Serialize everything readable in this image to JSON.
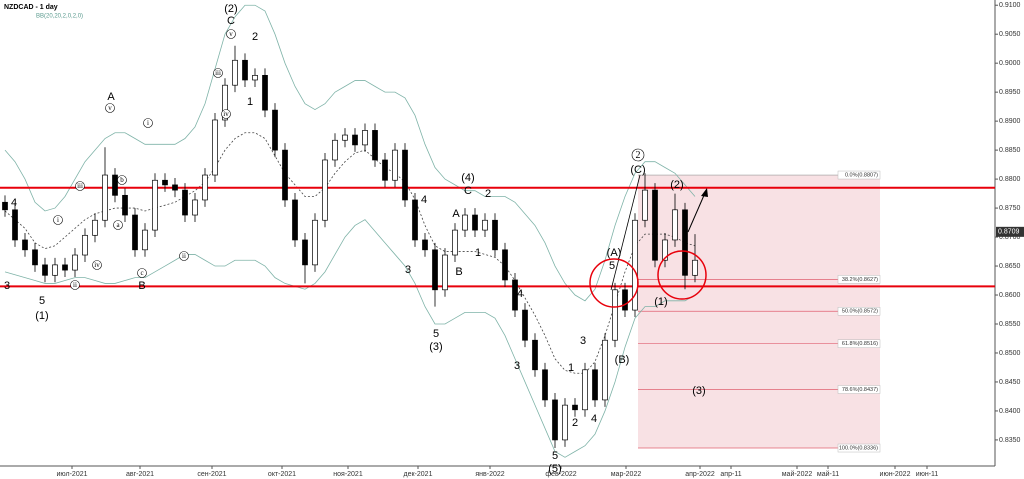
{
  "chart_data": {
    "type": "candlestick",
    "title": "NZDCAD - 1 day",
    "indicator": "BB(20,20,2,0,2,0)",
    "open": [
      0.876,
      0.8747,
      0.8695,
      0.8678,
      0.8652,
      0.8634,
      0.8652,
      0.8643,
      0.8669,
      0.8703,
      0.8729,
      0.8807,
      0.8772,
      0.8738,
      0.8678,
      0.8712,
      0.8798,
      0.879,
      0.8781,
      0.8738,
      0.8764,
      0.8807,
      0.8902,
      0.8962,
      0.9005,
      0.8971,
      0.8979,
      0.8919,
      0.885,
      0.8764,
      0.8695,
      0.8652,
      0.8729,
      0.8833,
      0.8867,
      0.8876,
      0.8859,
      0.8884,
      0.8833,
      0.8798,
      0.885,
      0.8764,
      0.8695,
      0.8678,
      0.8609,
      0.8669,
      0.8712,
      0.8738,
      0.8712,
      0.8729,
      0.8678,
      0.8626,
      0.8574,
      0.8522,
      0.8471,
      0.8419,
      0.835,
      0.841,
      0.8402,
      0.8471,
      0.8419,
      0.8522,
      0.8609,
      0.8574,
      0.8729,
      0.8781,
      0.866,
      0.8695,
      0.8747,
      0.8634
    ],
    "high": [
      0.8772,
      0.8759,
      0.8707,
      0.869,
      0.8664,
      0.8664,
      0.8664,
      0.8681,
      0.8715,
      0.8741,
      0.8855,
      0.8819,
      0.8784,
      0.875,
      0.8724,
      0.881,
      0.881,
      0.8802,
      0.8793,
      0.8776,
      0.8819,
      0.8914,
      0.8974,
      0.903,
      0.9017,
      0.8991,
      0.8991,
      0.8931,
      0.8862,
      0.8776,
      0.8707,
      0.8741,
      0.8845,
      0.8879,
      0.8888,
      0.8888,
      0.8896,
      0.8896,
      0.8845,
      0.8862,
      0.8862,
      0.8776,
      0.8707,
      0.869,
      0.8681,
      0.8724,
      0.875,
      0.875,
      0.8741,
      0.8741,
      0.869,
      0.8638,
      0.8586,
      0.8534,
      0.8483,
      0.8431,
      0.8422,
      0.8422,
      0.8483,
      0.8483,
      0.8534,
      0.8621,
      0.8621,
      0.8741,
      0.881,
      0.8793,
      0.8707,
      0.8775,
      0.8759,
      0.8705
    ],
    "low": [
      0.8735,
      0.8683,
      0.8666,
      0.864,
      0.8622,
      0.8622,
      0.8631,
      0.8631,
      0.8657,
      0.8691,
      0.8717,
      0.876,
      0.8726,
      0.8666,
      0.8666,
      0.87,
      0.8778,
      0.8769,
      0.8726,
      0.8726,
      0.8752,
      0.8795,
      0.889,
      0.895,
      0.8959,
      0.8959,
      0.8907,
      0.8838,
      0.8752,
      0.8683,
      0.862,
      0.864,
      0.8717,
      0.8821,
      0.8855,
      0.8847,
      0.8847,
      0.8821,
      0.8786,
      0.8786,
      0.8752,
      0.8683,
      0.8666,
      0.858,
      0.8597,
      0.8657,
      0.87,
      0.87,
      0.87,
      0.8666,
      0.8614,
      0.8562,
      0.851,
      0.8459,
      0.8407,
      0.8336,
      0.8338,
      0.839,
      0.839,
      0.8407,
      0.8407,
      0.851,
      0.8562,
      0.8562,
      0.8717,
      0.8648,
      0.8648,
      0.8683,
      0.861,
      0.8622
    ],
    "close": [
      0.8747,
      0.8695,
      0.8678,
      0.8652,
      0.8634,
      0.8652,
      0.8643,
      0.8669,
      0.8703,
      0.8729,
      0.8807,
      0.8772,
      0.8738,
      0.8678,
      0.8712,
      0.8798,
      0.879,
      0.8781,
      0.8738,
      0.8764,
      0.8807,
      0.8902,
      0.8962,
      0.9005,
      0.8971,
      0.8979,
      0.8919,
      0.885,
      0.8764,
      0.8695,
      0.8652,
      0.8729,
      0.8833,
      0.8867,
      0.8876,
      0.8859,
      0.8884,
      0.8833,
      0.8798,
      0.885,
      0.8764,
      0.8695,
      0.8678,
      0.8609,
      0.8669,
      0.8712,
      0.8738,
      0.8712,
      0.8729,
      0.8678,
      0.8626,
      0.8574,
      0.8522,
      0.8471,
      0.8419,
      0.835,
      0.841,
      0.8402,
      0.8471,
      0.8419,
      0.8522,
      0.8609,
      0.8574,
      0.8729,
      0.8781,
      0.866,
      0.8695,
      0.8747,
      0.8634,
      0.866
    ],
    "bollinger": {
      "color": "#7fb3a8",
      "upper": [
        0.885,
        0.883,
        0.88,
        0.876,
        0.8745,
        0.875,
        0.877,
        0.88,
        0.883,
        0.885,
        0.887,
        0.888,
        0.888,
        0.887,
        0.886,
        0.886,
        0.886,
        0.886,
        0.887,
        0.889,
        0.893,
        0.899,
        0.905,
        0.908,
        0.91,
        0.91,
        0.909,
        0.905,
        0.9,
        0.896,
        0.893,
        0.892,
        0.893,
        0.895,
        0.896,
        0.897,
        0.897,
        0.896,
        0.895,
        0.895,
        0.894,
        0.891,
        0.886,
        0.882,
        0.88,
        0.879,
        0.878,
        0.878,
        0.877,
        0.877,
        0.877,
        0.876,
        0.874,
        0.872,
        0.869,
        0.865,
        0.862,
        0.86,
        0.859,
        0.861,
        0.866,
        0.872,
        0.877,
        0.881,
        0.883,
        0.883,
        0.882,
        0.881,
        0.879,
        0.877
      ],
      "middle": [
        0.8745,
        0.873,
        0.8715,
        0.869,
        0.868,
        0.8685,
        0.87,
        0.8715,
        0.873,
        0.874,
        0.8745,
        0.875,
        0.875,
        0.875,
        0.8745,
        0.875,
        0.8755,
        0.876,
        0.877,
        0.878,
        0.8795,
        0.882,
        0.885,
        0.887,
        0.888,
        0.888,
        0.887,
        0.884,
        0.881,
        0.879,
        0.877,
        0.877,
        0.8785,
        0.881,
        0.883,
        0.8845,
        0.885,
        0.8835,
        0.882,
        0.881,
        0.8795,
        0.8765,
        0.872,
        0.8685,
        0.8675,
        0.8675,
        0.8675,
        0.8675,
        0.867,
        0.8665,
        0.865,
        0.8625,
        0.8595,
        0.8565,
        0.853,
        0.849,
        0.847,
        0.8465,
        0.8465,
        0.8485,
        0.853,
        0.8585,
        0.864,
        0.8685,
        0.8705,
        0.8705,
        0.8705,
        0.87,
        0.869,
        0.8685
      ],
      "lower": [
        0.864,
        0.8635,
        0.863,
        0.8625,
        0.862,
        0.862,
        0.8625,
        0.863,
        0.863,
        0.8625,
        0.862,
        0.862,
        0.8625,
        0.863,
        0.863,
        0.864,
        0.865,
        0.866,
        0.867,
        0.867,
        0.866,
        0.865,
        0.865,
        0.866,
        0.866,
        0.866,
        0.865,
        0.863,
        0.862,
        0.8615,
        0.861,
        0.862,
        0.864,
        0.867,
        0.87,
        0.872,
        0.873,
        0.871,
        0.869,
        0.867,
        0.865,
        0.862,
        0.858,
        0.855,
        0.855,
        0.856,
        0.857,
        0.857,
        0.857,
        0.856,
        0.853,
        0.849,
        0.845,
        0.841,
        0.837,
        0.833,
        0.832,
        0.833,
        0.834,
        0.836,
        0.84,
        0.845,
        0.851,
        0.856,
        0.858,
        0.858,
        0.859,
        0.859,
        0.859,
        0.86
      ]
    },
    "levels": [
      0.8785,
      0.8615
    ],
    "level_color": "#e8000b",
    "fib_levels": [
      {
        "value": 0.8807,
        "label": "0.0%(0.8807)"
      },
      {
        "value": 0.8627,
        "label": "38.2%(0.8627)"
      },
      {
        "value": 0.8572,
        "label": "50.0%(0.8572)"
      },
      {
        "value": 0.8516,
        "label": "61.8%(0.8516)"
      },
      {
        "value": 0.8437,
        "label": "78.6%(0.8437)"
      },
      {
        "value": 0.8336,
        "label": "100.0%(0.8336)"
      }
    ],
    "last_price": 0.8709,
    "ylim": [
      0.8305,
      0.9109
    ],
    "yticks": [
      {
        "value": 0.835,
        "label": "0.8350"
      },
      {
        "value": 0.84,
        "label": "0.8400"
      },
      {
        "value": 0.845,
        "label": "0.8450"
      },
      {
        "value": 0.85,
        "label": "0.8500"
      },
      {
        "value": 0.855,
        "label": "0.8550"
      },
      {
        "value": 0.86,
        "label": "0.8600"
      },
      {
        "value": 0.865,
        "label": "0.8650"
      },
      {
        "value": 0.87,
        "label": "0.8700"
      },
      {
        "value": 0.875,
        "label": "0.8750"
      },
      {
        "value": 0.88,
        "label": "0.8800"
      },
      {
        "value": 0.885,
        "label": "0.8850"
      },
      {
        "value": 0.89,
        "label": "0.8900"
      },
      {
        "value": 0.895,
        "label": "0.8950"
      },
      {
        "value": 0.9,
        "label": "0.9000"
      },
      {
        "value": 0.905,
        "label": "0.9050"
      },
      {
        "value": 0.91,
        "label": "0.9100"
      }
    ],
    "xticks": [
      "июл-2021",
      "авг-2021",
      "сен-2021",
      "окт-2021",
      "ноя-2021",
      "дек-2021",
      "янв-2022",
      "фев-2022",
      "мар-2022",
      "апр-2022",
      "апр-11",
      "май-2022",
      "май-11",
      "июн-2022",
      "июн-11"
    ],
    "annotations": [
      "3",
      "4",
      "5",
      "(1)",
      "A",
      "B",
      "(2)",
      "C",
      "2",
      "1",
      "3",
      "4",
      "5",
      "(3)",
      "A",
      "B",
      "(4)",
      "C",
      "2",
      "1",
      "4",
      "3",
      "1",
      "3",
      "2",
      "4",
      "5",
      "(5)",
      "(A)",
      "5",
      "(B)",
      "(C)",
      "(2)",
      "(1)",
      "(3)"
    ],
    "circled_annotations": [
      "v",
      "iii",
      "b",
      "a",
      "i",
      "iv",
      "ii",
      "c",
      "i",
      "ii",
      "iii",
      "iv",
      "v",
      "2"
    ]
  }
}
